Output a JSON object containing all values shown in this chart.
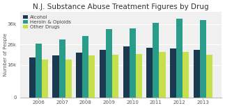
{
  "title": "N.J. Substance Abuse Treatment Figures by Drug",
  "ylabel": "Number of People",
  "years": [
    2006,
    2007,
    2008,
    2009,
    2010,
    2011,
    2012,
    2013
  ],
  "alcohol": [
    19500,
    20500,
    22000,
    23500,
    25000,
    24500,
    24000,
    23500
  ],
  "heroin_opioids": [
    26500,
    28500,
    30000,
    33500,
    34000,
    36500,
    38500,
    38000
  ],
  "other_drugs": [
    18500,
    18500,
    20500,
    21000,
    21500,
    22500,
    22500,
    21000
  ],
  "color_alcohol": "#1b3a52",
  "color_heroin": "#2a9d8a",
  "color_other": "#c5e04a",
  "ylim": [
    0,
    42000
  ],
  "yticks": [
    0,
    16000,
    26000,
    36000
  ],
  "ytick_labels": [
    "0",
    "16k",
    "26k",
    "36k"
  ],
  "background_color": "#ffffff",
  "plot_bg_color": "#f0f0f0",
  "grid_color": "#ffffff",
  "legend_labels": [
    "Alcohol",
    "Heroin & Opioids",
    "Other Drugs"
  ],
  "title_fontsize": 7.5,
  "axis_fontsize": 5.0,
  "tick_fontsize": 5.0,
  "bar_width": 0.27
}
